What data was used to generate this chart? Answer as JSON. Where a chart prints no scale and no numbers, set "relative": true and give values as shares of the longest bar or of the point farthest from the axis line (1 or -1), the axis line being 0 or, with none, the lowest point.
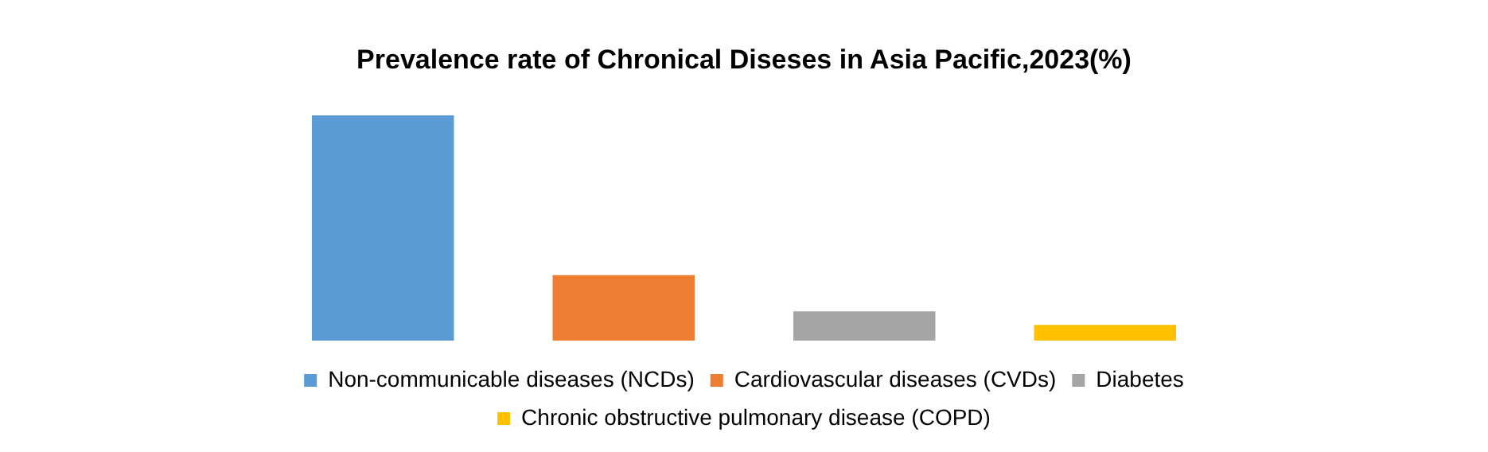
{
  "chart_data": {
    "type": "bar",
    "title": "Prevalence rate of Chronical Diseses in Asia Pacific,2023(%)",
    "relative": true,
    "categories": [
      null,
      null,
      null,
      null
    ],
    "legend": "bottom",
    "stacked": true,
    "series": [
      {
        "name": "Non-communicable diseases (NCDs)",
        "color": "#5b9bd5",
        "values": [
          1,
          null,
          null,
          null
        ]
      },
      {
        "name": "Cardiovascular diseases (CVDs)",
        "color": "#ed7d31",
        "values": [
          null,
          0.29,
          null,
          null
        ]
      },
      {
        "name": "Diabetes",
        "color": "#a5a5a5",
        "values": [
          null,
          null,
          0.13,
          null
        ]
      },
      {
        "name": "Chronic obstructive pulmonary disease (COPD)",
        "color": "#ffc000",
        "values": [
          null,
          null,
          null,
          0.07
        ]
      }
    ]
  }
}
